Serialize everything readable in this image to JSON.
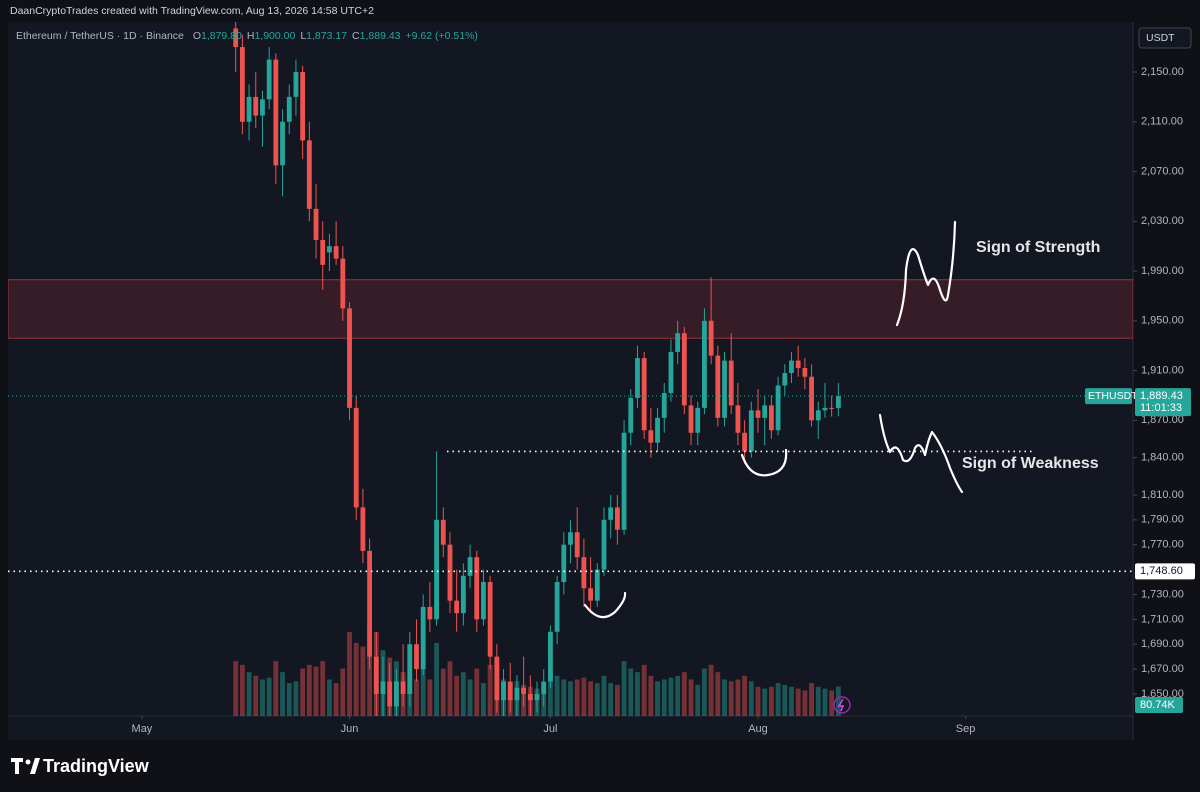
{
  "chart_data": {
    "type": "candlestick",
    "watermark": "DaanCryptoTrades created with TradingView.com, Aug 13, 2026 14:58 UTC+2",
    "symbol_title": "Ethereum / TetherUS · 1D · Binance",
    "legend_header": [
      {
        "key": "O",
        "value": "1,879.80"
      },
      {
        "key": "H",
        "value": "1,900.00"
      },
      {
        "key": "L",
        "value": "1,873.17"
      },
      {
        "key": "C",
        "value": "1,889.43"
      }
    ],
    "change_label": "+9.62 (+0.51%)",
    "currency_button": "USDT",
    "symbol_badge": "ETHUSDT",
    "last_price_label": "1,889.43",
    "countdown": "11:01:33",
    "volume_last_label": "80.74K",
    "brand": "TradingView",
    "annotations": [
      "Sign of Strength",
      "Sign of Weakness"
    ],
    "up_color": "#26a69a",
    "down_color": "#ef5350",
    "zone": [
      1936,
      1983
    ],
    "support": 1845,
    "levels": [
      {
        "value": 1748.6,
        "label": "1,748.60"
      }
    ],
    "ylim": [
      1632.3,
      2190.2
    ],
    "yticks": [
      {
        "value": 2150,
        "label": "2,150.00"
      },
      {
        "value": 2110,
        "label": "2,110.00"
      },
      {
        "value": 2070,
        "label": "2,070.00"
      },
      {
        "value": 2030,
        "label": "2,030.00"
      },
      {
        "value": 1990,
        "label": "1,990.00"
      },
      {
        "value": 1950,
        "label": "1,950.00"
      },
      {
        "value": 1910,
        "label": "1,910.00"
      },
      {
        "value": 1870,
        "label": "1,870.00"
      },
      {
        "value": 1840,
        "label": "1,840.00"
      },
      {
        "value": 1810,
        "label": "1,810.00"
      },
      {
        "value": 1790,
        "label": "1,790.00"
      },
      {
        "value": 1770,
        "label": "1,770.00"
      },
      {
        "value": 1730,
        "label": "1,730.00"
      },
      {
        "value": 1710,
        "label": "1,710.00"
      },
      {
        "value": 1690,
        "label": "1,690.00"
      },
      {
        "value": 1670,
        "label": "1,670.00"
      },
      {
        "value": 1650,
        "label": "1,650.00"
      }
    ],
    "volume_ylim": [
      0,
      260
    ],
    "xlim": [
      -34,
      134
    ],
    "xticks": [
      {
        "value": -14,
        "label": "May"
      },
      {
        "value": 17,
        "label": "Jun"
      },
      {
        "value": 47,
        "label": "Jul"
      },
      {
        "value": 78,
        "label": "Aug"
      },
      {
        "value": 109,
        "label": "Sep"
      }
    ],
    "grid": false,
    "open": [
      2185,
      2170,
      2110,
      2130,
      2115,
      2128,
      2160,
      2075,
      2110,
      2130,
      2150,
      2095,
      2040,
      2015,
      2005,
      2010,
      2000,
      1960,
      1880,
      1800,
      1765,
      1680,
      1650,
      1660,
      1640,
      1660,
      1650,
      1690,
      1670,
      1720,
      1710,
      1790,
      1770,
      1725,
      1715,
      1745,
      1760,
      1710,
      1740,
      1680,
      1645,
      1660,
      1645,
      1655,
      1650,
      1645,
      1650,
      1660,
      1700,
      1740,
      1770,
      1780,
      1760,
      1735,
      1725,
      1750,
      1790,
      1800,
      1782,
      1860,
      1888,
      1920,
      1862,
      1852,
      1872,
      1892,
      1925,
      1940,
      1882,
      1860,
      1880,
      1950,
      1922,
      1872,
      1918,
      1882,
      1860,
      1845,
      1878,
      1872,
      1882,
      1862,
      1898,
      1908,
      1918,
      1912,
      1905,
      1870,
      1878,
      1880,
      1879.8
    ],
    "high": [
      2195,
      2180,
      2140,
      2150,
      2135,
      2170,
      2165,
      2120,
      2140,
      2160,
      2155,
      2110,
      2060,
      2030,
      2020,
      2030,
      2010,
      1965,
      1890,
      1815,
      1775,
      1700,
      1680,
      1675,
      1670,
      1690,
      1700,
      1710,
      1730,
      1740,
      1845,
      1800,
      1780,
      1750,
      1755,
      1770,
      1765,
      1750,
      1745,
      1690,
      1670,
      1675,
      1665,
      1680,
      1665,
      1660,
      1670,
      1705,
      1745,
      1780,
      1790,
      1800,
      1775,
      1760,
      1755,
      1800,
      1810,
      1810,
      1870,
      1895,
      1930,
      1925,
      1880,
      1880,
      1900,
      1935,
      1950,
      1945,
      1890,
      1885,
      1960,
      1985,
      1930,
      1925,
      1940,
      1900,
      1870,
      1885,
      1895,
      1890,
      1890,
      1905,
      1915,
      1925,
      1930,
      1920,
      1915,
      1885,
      1900,
      1890,
      1900
    ],
    "low": [
      2150,
      2100,
      2095,
      2105,
      2090,
      2120,
      2060,
      2050,
      2100,
      2115,
      2080,
      2030,
      2000,
      1975,
      1990,
      1995,
      1950,
      1870,
      1790,
      1755,
      1670,
      1630,
      1620,
      1630,
      1625,
      1640,
      1640,
      1660,
      1665,
      1700,
      1705,
      1760,
      1715,
      1700,
      1705,
      1735,
      1700,
      1705,
      1670,
      1635,
      1630,
      1635,
      1630,
      1640,
      1630,
      1635,
      1640,
      1655,
      1690,
      1730,
      1755,
      1750,
      1720,
      1715,
      1720,
      1745,
      1775,
      1770,
      1778,
      1850,
      1880,
      1855,
      1840,
      1845,
      1860,
      1885,
      1915,
      1875,
      1850,
      1850,
      1875,
      1915,
      1865,
      1865,
      1875,
      1850,
      1835,
      1840,
      1860,
      1850,
      1855,
      1858,
      1890,
      1900,
      1905,
      1895,
      1865,
      1855,
      1872,
      1873,
      1873.17
    ],
    "close": [
      2170,
      2110,
      2130,
      2115,
      2128,
      2160,
      2075,
      2110,
      2130,
      2150,
      2095,
      2040,
      2015,
      1995,
      2010,
      2000,
      1960,
      1880,
      1800,
      1765,
      1680,
      1650,
      1660,
      1640,
      1660,
      1650,
      1690,
      1670,
      1720,
      1710,
      1790,
      1770,
      1725,
      1715,
      1745,
      1760,
      1710,
      1740,
      1680,
      1645,
      1660,
      1645,
      1655,
      1650,
      1645,
      1650,
      1660,
      1700,
      1740,
      1770,
      1780,
      1760,
      1735,
      1725,
      1750,
      1790,
      1800,
      1782,
      1860,
      1888,
      1920,
      1862,
      1852,
      1872,
      1892,
      1925,
      1940,
      1882,
      1860,
      1880,
      1950,
      1922,
      1872,
      1918,
      1882,
      1860,
      1845,
      1878,
      1872,
      1882,
      1862,
      1898,
      1908,
      1918,
      1912,
      1905,
      1870,
      1878,
      1880,
      1879.8,
      1889.43
    ],
    "volume": [
      150,
      140,
      120,
      110,
      100,
      105,
      150,
      120,
      90,
      95,
      130,
      140,
      135,
      150,
      100,
      90,
      130,
      230,
      200,
      190,
      250,
      230,
      180,
      160,
      150,
      120,
      110,
      100,
      140,
      100,
      200,
      130,
      150,
      110,
      120,
      100,
      130,
      90,
      140,
      150,
      100,
      90,
      95,
      85,
      80,
      75,
      85,
      120,
      110,
      100,
      95,
      100,
      105,
      95,
      90,
      110,
      90,
      85,
      150,
      130,
      120,
      140,
      110,
      95,
      100,
      105,
      110,
      120,
      100,
      85,
      130,
      140,
      120,
      100,
      95,
      100,
      110,
      95,
      80,
      75,
      80,
      90,
      85,
      80,
      75,
      70,
      90,
      80,
      75,
      70,
      80.74
    ]
  }
}
